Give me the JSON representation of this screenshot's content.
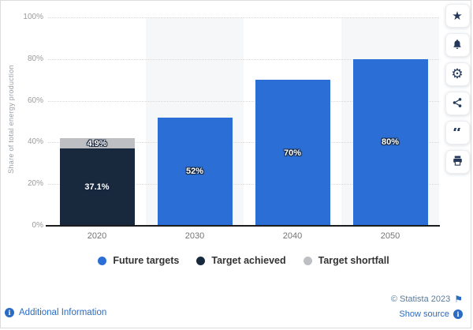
{
  "chart_data": {
    "type": "bar",
    "stacked": true,
    "title": "",
    "ylabel": "Share of total energy production",
    "ylim": [
      0,
      100
    ],
    "ytick_values": [
      100,
      80,
      60,
      40,
      20,
      0
    ],
    "ytick_labels": [
      "100%",
      "80%",
      "60%",
      "40%",
      "20%",
      "0%"
    ],
    "categories": [
      "2020",
      "2030",
      "2040",
      "2050"
    ],
    "series": [
      {
        "name": "Future targets",
        "color_key": "future",
        "values": [
          null,
          52,
          70,
          80
        ],
        "labels": [
          null,
          "52%",
          "70%",
          "80%"
        ]
      },
      {
        "name": "Target achieved",
        "color_key": "achieved",
        "values": [
          37.1,
          null,
          null,
          null
        ],
        "labels": [
          "37.1%",
          null,
          null,
          null
        ]
      },
      {
        "name": "Target shortfall",
        "color_key": "shortfall",
        "values": [
          4.9,
          null,
          null,
          null
        ],
        "labels": [
          "4.9%",
          null,
          null,
          null
        ]
      }
    ],
    "colors": {
      "future": "#2b6fd6",
      "achieved": "#18293e",
      "shortfall": "#bdbfc3"
    },
    "grid": {
      "horizontal": true,
      "style": "dotted"
    },
    "column_stripes": "alternate-light-gray",
    "legend_position": "bottom"
  },
  "toolbar": {
    "buttons": [
      {
        "name": "favorite",
        "icon": "star-icon"
      },
      {
        "name": "notifications",
        "icon": "bell-icon"
      },
      {
        "name": "settings",
        "icon": "gear-icon"
      },
      {
        "name": "share",
        "icon": "share-icon"
      },
      {
        "name": "cite",
        "icon": "quote-icon"
      },
      {
        "name": "print",
        "icon": "printer-icon"
      }
    ],
    "star_glyph": "★",
    "gear_glyph": "⚙",
    "quote_glyph": "“"
  },
  "footer": {
    "copyright": "© Statista 2023",
    "flag_glyph": "⚑",
    "show_source_label": "Show source",
    "additional_info_label": "Additional Information",
    "info_glyph": "i",
    "link_color": "#2b6bc3"
  }
}
